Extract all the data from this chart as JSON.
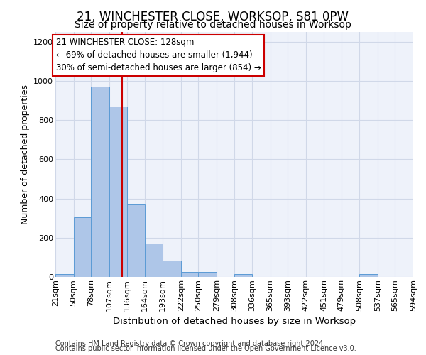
{
  "title": "21, WINCHESTER CLOSE, WORKSOP, S81 0PW",
  "subtitle": "Size of property relative to detached houses in Worksop",
  "xlabel": "Distribution of detached houses by size in Worksop",
  "ylabel": "Number of detached properties",
  "footnote1": "Contains HM Land Registry data © Crown copyright and database right 2024.",
  "footnote2": "Contains public sector information licensed under the Open Government Licence v3.0.",
  "bin_edges": [
    21,
    50,
    78,
    107,
    136,
    164,
    193,
    222,
    250,
    279,
    308,
    336,
    365,
    393,
    422,
    451,
    479,
    508,
    537,
    565,
    594
  ],
  "bar_heights": [
    13,
    306,
    970,
    868,
    370,
    170,
    85,
    27,
    27,
    0,
    13,
    0,
    0,
    0,
    0,
    0,
    0,
    13,
    0,
    0
  ],
  "bar_color": "#aec6e8",
  "bar_edgecolor": "#5b9bd5",
  "grid_color": "#d0d8e8",
  "property_line_x": 128,
  "property_line_color": "#cc0000",
  "annotation_line1": "21 WINCHESTER CLOSE: 128sqm",
  "annotation_line2": "← 69% of detached houses are smaller (1,944)",
  "annotation_line3": "30% of semi-detached houses are larger (854) →",
  "annotation_box_edgecolor": "#cc0000",
  "ylim": [
    0,
    1250
  ],
  "yticks": [
    0,
    200,
    400,
    600,
    800,
    1000,
    1200
  ],
  "title_fontsize": 12,
  "subtitle_fontsize": 10,
  "xlabel_fontsize": 9.5,
  "ylabel_fontsize": 9,
  "tick_fontsize": 8,
  "annotation_fontsize": 8.5,
  "footnote_fontsize": 7,
  "background_color": "#ffffff",
  "axes_bg_color": "#eef2fa"
}
